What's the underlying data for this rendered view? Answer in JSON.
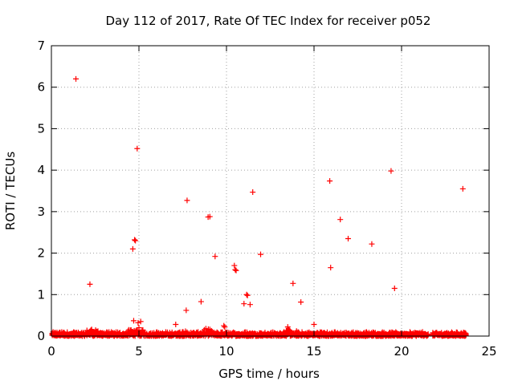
{
  "chart_data": {
    "type": "scatter",
    "title": "Day 112 of 2017, Rate Of TEC Index for receiver p052",
    "xlabel": "GPS time / hours",
    "ylabel": "ROTI / TECUs",
    "xlim": [
      0,
      25
    ],
    "ylim": [
      0,
      7
    ],
    "xticks": [
      0,
      5,
      10,
      15,
      20,
      25
    ],
    "yticks": [
      0,
      1,
      2,
      3,
      4,
      5,
      6,
      7
    ],
    "grid": true,
    "marker": "+",
    "color": "#ff0000",
    "baseline": {
      "x_range": [
        0.05,
        23.7
      ],
      "gaps": [
        [
          21.55,
          21.75
        ]
      ],
      "typical_max": 0.1,
      "elevated": [
        [
          2.0,
          2.7,
          0.2
        ],
        [
          4.3,
          5.4,
          0.15
        ],
        [
          7.4,
          7.8,
          0.12
        ],
        [
          8.6,
          9.2,
          0.18
        ],
        [
          13.2,
          13.8,
          0.15
        ],
        [
          23.3,
          23.6,
          0.1
        ]
      ]
    },
    "series": [
      {
        "values": [
          [
            1.4,
            6.2
          ],
          [
            2.2,
            1.25
          ],
          [
            4.65,
            2.1
          ],
          [
            4.7,
            0.37
          ],
          [
            4.75,
            2.32
          ],
          [
            4.8,
            2.3
          ],
          [
            4.9,
            4.52
          ],
          [
            4.95,
            0.32
          ],
          [
            5.0,
            0.2
          ],
          [
            5.1,
            0.35
          ],
          [
            7.1,
            0.28
          ],
          [
            7.7,
            0.62
          ],
          [
            7.75,
            3.27
          ],
          [
            8.55,
            0.83
          ],
          [
            8.95,
            2.87
          ],
          [
            9.05,
            2.88
          ],
          [
            9.35,
            1.92
          ],
          [
            9.85,
            0.25
          ],
          [
            9.9,
            0.22
          ],
          [
            10.45,
            1.7
          ],
          [
            10.5,
            1.6
          ],
          [
            10.55,
            1.58
          ],
          [
            11.0,
            0.78
          ],
          [
            11.15,
            1.0
          ],
          [
            11.2,
            0.98
          ],
          [
            11.35,
            0.76
          ],
          [
            11.5,
            3.47
          ],
          [
            11.95,
            1.97
          ],
          [
            13.5,
            0.22
          ],
          [
            13.55,
            0.15
          ],
          [
            13.8,
            1.27
          ],
          [
            14.0,
            0.12
          ],
          [
            14.25,
            0.82
          ],
          [
            15.0,
            0.28
          ],
          [
            15.9,
            3.74
          ],
          [
            15.95,
            1.65
          ],
          [
            16.5,
            2.81
          ],
          [
            16.95,
            2.35
          ],
          [
            18.3,
            2.22
          ],
          [
            19.4,
            3.98
          ],
          [
            19.6,
            1.15
          ],
          [
            23.5,
            3.55
          ]
        ]
      }
    ]
  }
}
